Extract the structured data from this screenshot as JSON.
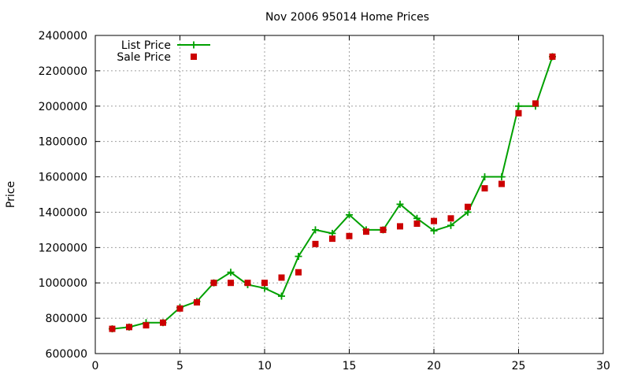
{
  "chart_data": {
    "type": "line",
    "title": "Nov 2006 95014 Home Prices",
    "xlabel": "",
    "ylabel": "Price",
    "xlim": [
      0,
      30
    ],
    "ylim": [
      600000,
      2400000
    ],
    "x_ticks": [
      0,
      5,
      10,
      15,
      20,
      25,
      30
    ],
    "y_ticks": [
      600000,
      800000,
      1000000,
      1200000,
      1400000,
      1600000,
      1800000,
      2000000,
      2200000,
      2400000
    ],
    "grid": true,
    "legend_position": "top-left",
    "series": [
      {
        "name": "List Price",
        "style": "line-plus",
        "color": "#00a000",
        "x": [
          1,
          2,
          3,
          4,
          5,
          6,
          7,
          8,
          9,
          10,
          11,
          12,
          13,
          14,
          15,
          16,
          17,
          18,
          19,
          20,
          21,
          22,
          23,
          24,
          25,
          26,
          27
        ],
        "values": [
          740000,
          750000,
          775000,
          775000,
          860000,
          895000,
          1000000,
          1060000,
          990000,
          970000,
          925000,
          1150000,
          1300000,
          1280000,
          1385000,
          1300000,
          1300000,
          1445000,
          1365000,
          1295000,
          1325000,
          1400000,
          1600000,
          1600000,
          2000000,
          2000000,
          2280000
        ]
      },
      {
        "name": "Sale Price",
        "style": "square-marker",
        "color": "#cc0000",
        "x": [
          1,
          2,
          3,
          4,
          5,
          6,
          7,
          8,
          9,
          10,
          11,
          12,
          13,
          14,
          15,
          16,
          17,
          18,
          19,
          20,
          21,
          22,
          23,
          24,
          25,
          26,
          27
        ],
        "values": [
          740000,
          750000,
          760000,
          775000,
          855000,
          890000,
          1000000,
          1000000,
          1000000,
          1000000,
          1030000,
          1060000,
          1220000,
          1250000,
          1265000,
          1290000,
          1300000,
          1320000,
          1335000,
          1350000,
          1365000,
          1430000,
          1535000,
          1560000,
          1960000,
          2015000,
          2280000
        ]
      }
    ]
  }
}
